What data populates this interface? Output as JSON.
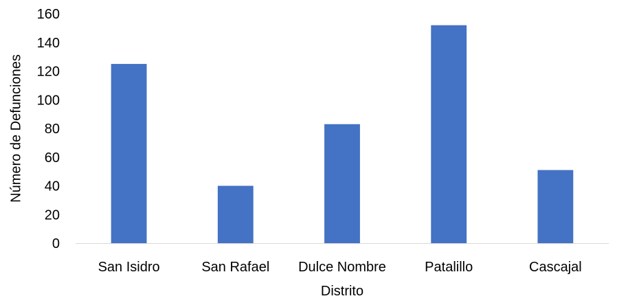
{
  "chart_data": {
    "type": "bar",
    "categories": [
      "San Isidro",
      "San Rafael",
      "Dulce Nombre",
      "Patalillo",
      "Cascajal"
    ],
    "values": [
      125,
      40,
      83,
      152,
      51
    ],
    "title": "",
    "xlabel": "Distrito",
    "ylabel": "Número de Defunciones",
    "ylim": [
      0,
      160
    ],
    "yticks": [
      0,
      20,
      40,
      60,
      80,
      100,
      120,
      140,
      160
    ],
    "ytick_labels": [
      "0",
      "20",
      "40",
      "60",
      "80",
      "100",
      "120",
      "140",
      "160"
    ],
    "grid": false,
    "legend": "none",
    "bar_color": "#4472C4",
    "axis_color": "#D9D9D9"
  }
}
